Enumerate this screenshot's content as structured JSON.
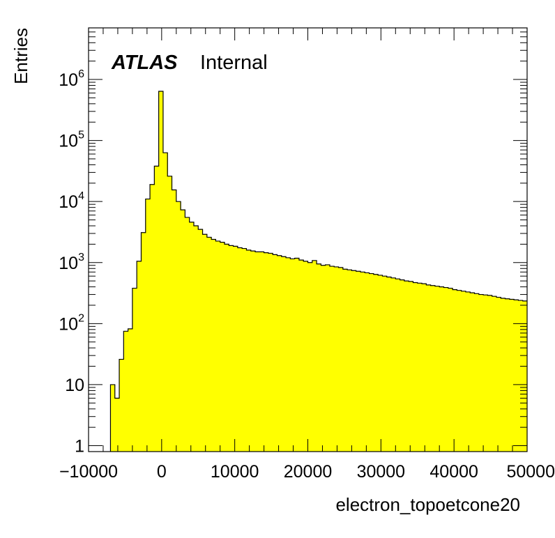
{
  "chart_data": {
    "type": "histogram",
    "title": "",
    "label_bold": "ATLAS",
    "label_normal": "Internal",
    "xlabel": "electron_topoetcone20",
    "ylabel": "Entries",
    "xlim": [
      -10000,
      50000
    ],
    "ylim": [
      0.8,
      7000000
    ],
    "log_y": true,
    "fill_color": "#ffff00",
    "line_color": "#000000",
    "x_tick_labels": [
      "−10000",
      "0",
      "10000",
      "20000",
      "30000",
      "40000",
      "50000"
    ],
    "y_tick_labels": [
      {
        "value": 1,
        "base": "1",
        "exp": ""
      },
      {
        "value": 10,
        "base": "10",
        "exp": ""
      },
      {
        "value": 100,
        "base": "10",
        "exp": "2"
      },
      {
        "value": 1000,
        "base": "10",
        "exp": "3"
      },
      {
        "value": 10000,
        "base": "10",
        "exp": "4"
      },
      {
        "value": 100000,
        "base": "10",
        "exp": "5"
      },
      {
        "value": 1000000,
        "base": "10",
        "exp": "6"
      }
    ],
    "bin_start": -7000,
    "bin_width": 600,
    "counts": [
      10,
      6,
      26,
      75,
      82,
      380,
      1050,
      3100,
      11000,
      19000,
      38000,
      640000,
      63000,
      26000,
      15500,
      10000,
      7300,
      5500,
      4600,
      4000,
      3500,
      2900,
      2600,
      2400,
      2250,
      2150,
      2000,
      1900,
      1850,
      1750,
      1700,
      1600,
      1550,
      1500,
      1500,
      1450,
      1420,
      1350,
      1300,
      1250,
      1200,
      1150,
      1180,
      1100,
      1050,
      1000,
      1080,
      950,
      900,
      920,
      870,
      850,
      830,
      780,
      760,
      740,
      720,
      700,
      680,
      660,
      640,
      620,
      600,
      580,
      560,
      540,
      520,
      500,
      490,
      470,
      460,
      450,
      430,
      420,
      410,
      400,
      390,
      380,
      360,
      350,
      340,
      330,
      320,
      310,
      300,
      295,
      290,
      280,
      270,
      260,
      255,
      250,
      245,
      240,
      235,
      230,
      225,
      220,
      215,
      210,
      205,
      200
    ]
  }
}
